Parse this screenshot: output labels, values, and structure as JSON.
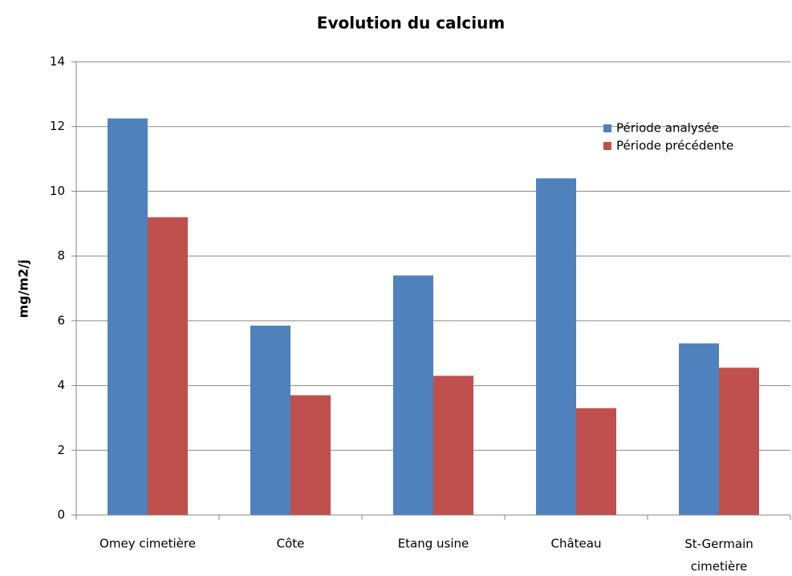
{
  "chart_data": {
    "type": "bar",
    "title": "Evolution du calcium",
    "y_label": "mg/m2/j",
    "categories": [
      "Omey cimetière",
      "Côte",
      "Etang usine",
      "Château",
      "St-Germain cimetière"
    ],
    "series": [
      {
        "name": "Période analysée",
        "color": "#4f81bd",
        "values": [
          12.25,
          5.85,
          7.4,
          10.4,
          5.3
        ]
      },
      {
        "name": "Période précédente",
        "color": "#c0504d",
        "values": [
          9.2,
          3.7,
          4.3,
          3.3,
          4.55
        ]
      }
    ],
    "ylim": [
      0,
      14
    ],
    "yticks": [
      0,
      2,
      4,
      6,
      8,
      10,
      12,
      14
    ],
    "grid": true,
    "legend": "upper right"
  }
}
